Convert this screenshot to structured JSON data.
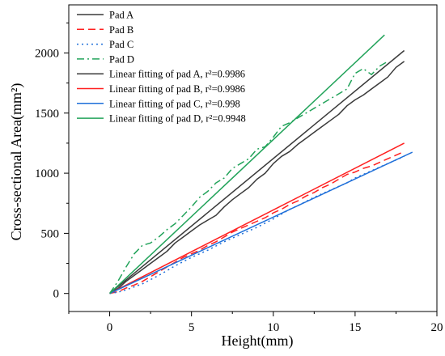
{
  "chart_data": {
    "type": "line",
    "xlabel": "Height(mm)",
    "ylabel": "Cross-sectional Area(mm²)",
    "xlim": [
      -2.5,
      20
    ],
    "ylim": [
      -150,
      2400
    ],
    "xticks": [
      0,
      5,
      10,
      15,
      20
    ],
    "yticks": [
      0,
      500,
      1000,
      1500,
      2000
    ],
    "legend_position": "top-left",
    "grid": false,
    "series": [
      {
        "name": "Pad A",
        "color": "#3a3a3a",
        "style": "solid",
        "x": [
          0,
          0.5,
          1,
          1.5,
          2,
          2.5,
          3,
          3.5,
          4,
          4.5,
          5,
          5.5,
          6,
          6.5,
          7,
          7.5,
          8,
          8.5,
          9,
          9.5,
          10,
          10.5,
          11,
          11.5,
          12,
          12.5,
          13,
          13.5,
          14,
          14.5,
          15,
          15.5,
          16,
          16.5,
          17,
          17.5,
          18
        ],
        "y": [
          0,
          40,
          100,
          150,
          200,
          250,
          300,
          350,
          420,
          470,
          520,
          570,
          610,
          650,
          720,
          780,
          830,
          880,
          950,
          1000,
          1080,
          1140,
          1180,
          1240,
          1290,
          1340,
          1390,
          1440,
          1490,
          1560,
          1610,
          1650,
          1700,
          1750,
          1800,
          1880,
          1930
        ]
      },
      {
        "name": "Pad B",
        "color": "#ff2020",
        "style": "dashed",
        "x": [
          0,
          0.5,
          1,
          1.5,
          2,
          2.5,
          3,
          3.5,
          4,
          4.5,
          5,
          5.5,
          6,
          6.5,
          7,
          7.5,
          8,
          8.5,
          9,
          9.5,
          10,
          10.5,
          11,
          11.5,
          12,
          12.5,
          13,
          13.5,
          14,
          14.5,
          15,
          15.5,
          16,
          16.5,
          17,
          17.5,
          18
        ],
        "y": [
          0,
          15,
          45,
          70,
          100,
          140,
          180,
          220,
          260,
          300,
          330,
          360,
          400,
          430,
          470,
          510,
          540,
          570,
          600,
          630,
          670,
          700,
          740,
          770,
          810,
          840,
          880,
          910,
          950,
          990,
          1010,
          1040,
          1060,
          1090,
          1120,
          1150,
          1180
        ]
      },
      {
        "name": "Pad C",
        "color": "#1e6fd9",
        "style": "dotted",
        "x": [
          0,
          0.5,
          1,
          1.5,
          2,
          2.5,
          3,
          3.5,
          4,
          4.5,
          5,
          5.5,
          6,
          6.5,
          7,
          7.5,
          8,
          8.5,
          9,
          9.5,
          10,
          10.5,
          11,
          11.5,
          12,
          12.5,
          13,
          13.5,
          14,
          14.5,
          15,
          15.5,
          16,
          16.5,
          17,
          17.5,
          18
        ],
        "y": [
          0,
          10,
          30,
          55,
          80,
          115,
          150,
          190,
          230,
          265,
          300,
          330,
          360,
          395,
          430,
          460,
          490,
          520,
          550,
          585,
          620,
          660,
          700,
          730,
          765,
          800,
          830,
          860,
          890,
          920,
          960,
          990,
          1020,
          1050,
          1080,
          1110,
          1140
        ]
      },
      {
        "name": "Pad D",
        "color": "#22a35a",
        "style": "dashdot",
        "x": [
          0,
          0.5,
          1,
          1.5,
          2,
          2.5,
          3,
          3.5,
          4,
          4.5,
          5,
          5.5,
          6,
          6.5,
          7,
          7.5,
          8,
          8.5,
          9,
          9.5,
          10,
          10.5,
          11,
          11.5,
          12,
          12.5,
          13,
          13.5,
          14,
          14.5,
          15,
          15.5,
          16,
          16.5,
          17
        ],
        "y": [
          0,
          100,
          220,
          330,
          400,
          420,
          470,
          530,
          580,
          650,
          720,
          800,
          850,
          920,
          960,
          1040,
          1080,
          1120,
          1200,
          1220,
          1300,
          1390,
          1420,
          1460,
          1500,
          1540,
          1580,
          1620,
          1660,
          1700,
          1830,
          1870,
          1820,
          1890,
          1930
        ]
      },
      {
        "name": "Linear fitting of pad A, r²=0.9986",
        "color": "#3a3a3a",
        "style": "solid",
        "x": [
          0,
          18
        ],
        "y": [
          0,
          2020
        ]
      },
      {
        "name": "Linear fitting of pad B, r²=0.9986",
        "color": "#ff2020",
        "style": "solid",
        "x": [
          0,
          18
        ],
        "y": [
          0,
          1250
        ]
      },
      {
        "name": "Linear fitting of pad C, r²=0.998",
        "color": "#1e6fd9",
        "style": "solid",
        "x": [
          0,
          18.5
        ],
        "y": [
          0,
          1175
        ]
      },
      {
        "name": "Linear fitting of pad D, r²=0.9948",
        "color": "#22a35a",
        "style": "solid",
        "x": [
          0,
          16.8
        ],
        "y": [
          0,
          2150
        ]
      }
    ]
  }
}
